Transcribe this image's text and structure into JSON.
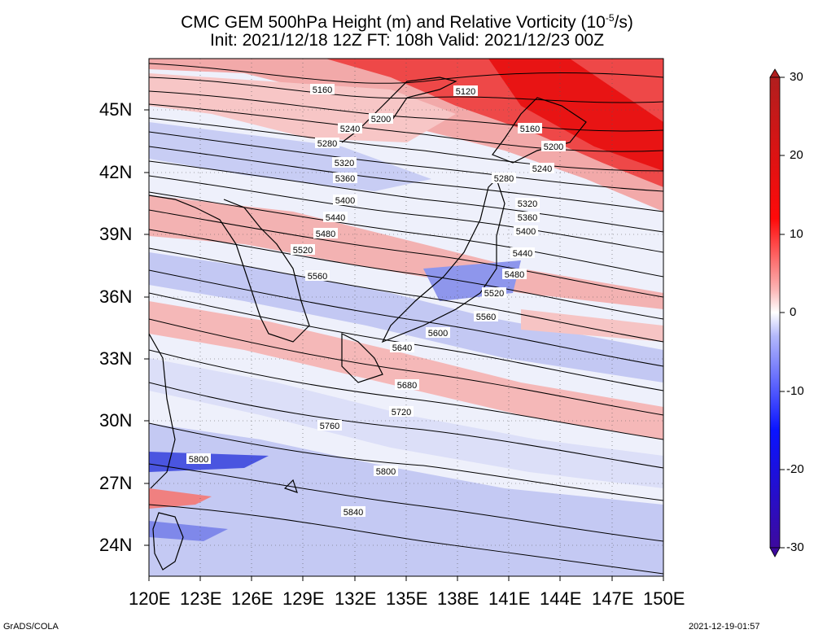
{
  "title_line1": "CMC GEM 500hPa Height (m) and Relative Vorticity (10",
  "title_line1_sup": "-5",
  "title_line1_end": "/s)",
  "title_line2": "Init: 2021/12/18 12Z  FT: 108h  Valid: 2021/12/23 00Z",
  "footer_left": "GrADS/COLA",
  "footer_right": "2021-12-19-01:57",
  "lat_labels": [
    "45N",
    "42N",
    "39N",
    "36N",
    "33N",
    "30N",
    "27N",
    "24N"
  ],
  "lon_labels": [
    "120E",
    "123E",
    "126E",
    "129E",
    "132E",
    "135E",
    "138E",
    "141E",
    "144E",
    "147E",
    "150E"
  ],
  "colorbar_labels": [
    "30",
    "20",
    "10",
    "0",
    "-10",
    "-20",
    "-30"
  ],
  "colors": {
    "positive": "#e8141c",
    "negative": "#1a2ad8",
    "neutral": "#ffffff",
    "contour": "#000000"
  },
  "contours": [
    {
      "value": "5120",
      "label": "5120"
    },
    {
      "value": "5160",
      "label": "5160"
    },
    {
      "value": "5200",
      "label": "5200"
    },
    {
      "value": "5240",
      "label": "5240"
    },
    {
      "value": "5280",
      "label": "5280"
    },
    {
      "value": "5320",
      "label": "5320"
    },
    {
      "value": "5360",
      "label": "5360"
    },
    {
      "value": "5400",
      "label": "5400"
    },
    {
      "value": "5440",
      "label": "5440"
    },
    {
      "value": "5480",
      "label": "5480"
    },
    {
      "value": "5520",
      "label": "5520"
    },
    {
      "value": "5560",
      "label": "5560"
    },
    {
      "value": "5600",
      "label": "5600"
    },
    {
      "value": "5640",
      "label": "5640"
    },
    {
      "value": "5680",
      "label": "5680"
    },
    {
      "value": "5720",
      "label": "5720"
    },
    {
      "value": "5760",
      "label": "5760"
    },
    {
      "value": "5800",
      "label": "5800"
    },
    {
      "value": "5840",
      "label": "5840"
    }
  ]
}
